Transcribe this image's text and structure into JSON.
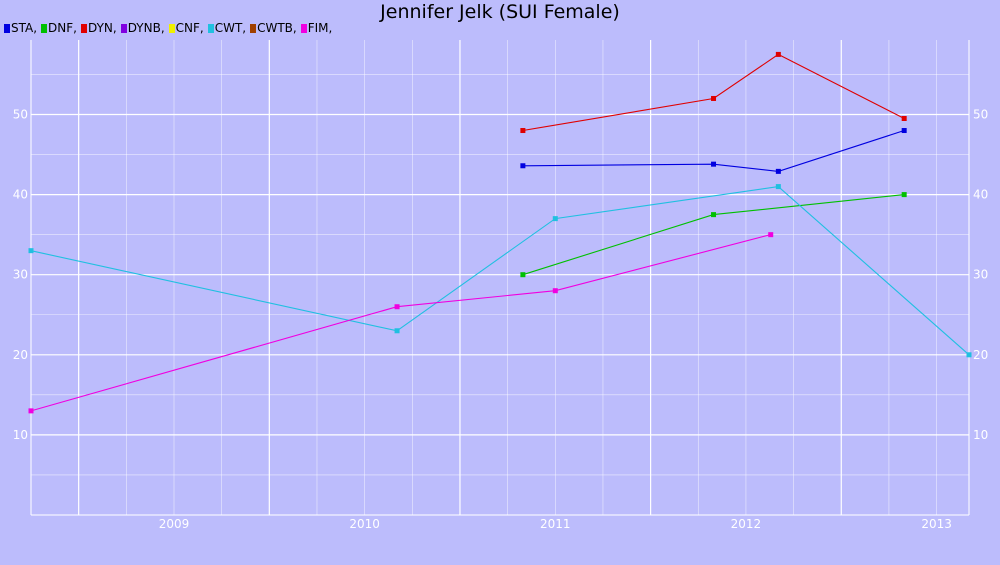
{
  "chart_data": {
    "type": "line",
    "title": "Jennifer Jelk (SUI Female)",
    "xlabel": "",
    "ylabel": "",
    "x_tick_labels": [
      "2009",
      "2010",
      "2011",
      "2012",
      "2013"
    ],
    "x_range": [
      2008.75,
      2013.67
    ],
    "y_ticks": [
      10,
      20,
      30,
      40,
      50
    ],
    "ylim": [
      0,
      59.3
    ],
    "grid": true,
    "legend_position": "top-left",
    "series": [
      {
        "name": "STA,",
        "color": "#0000e0",
        "points": [
          [
            2011.33,
            43.6
          ],
          [
            2012.33,
            43.8
          ],
          [
            2012.67,
            42.9
          ],
          [
            2013.33,
            48.0
          ]
        ]
      },
      {
        "name": "DNF,",
        "color": "#00c000",
        "points": [
          [
            2011.33,
            30.0
          ],
          [
            2012.33,
            37.5
          ],
          [
            2013.33,
            40.0
          ]
        ]
      },
      {
        "name": "DYN,",
        "color": "#e00000",
        "points": [
          [
            2011.33,
            48.0
          ],
          [
            2012.33,
            52.0
          ],
          [
            2012.67,
            57.5
          ],
          [
            2013.33,
            49.5
          ]
        ]
      },
      {
        "name": "DYNB,",
        "color": "#8000e0",
        "points": []
      },
      {
        "name": "CNF,",
        "color": "#f0f000",
        "points": []
      },
      {
        "name": "CWT,",
        "color": "#20c0e0",
        "points": [
          [
            2008.75,
            33.0
          ],
          [
            2010.67,
            23.0
          ],
          [
            2011.5,
            37.0
          ],
          [
            2012.67,
            41.0
          ],
          [
            2013.67,
            20.0
          ]
        ]
      },
      {
        "name": "CWTB,",
        "color": "#a04000",
        "points": []
      },
      {
        "name": "FIM,",
        "color": "#f000e0",
        "points": [
          [
            2008.75,
            13.0
          ],
          [
            2010.67,
            26.0
          ],
          [
            2011.5,
            28.0
          ],
          [
            2012.63,
            35.0
          ]
        ]
      }
    ]
  }
}
